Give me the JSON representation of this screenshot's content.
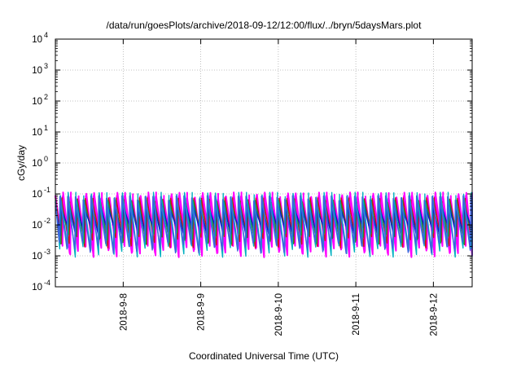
{
  "chart_data": {
    "type": "line",
    "title": "/data/run/goesPlots/archive/2018-09-12/12:00/flux/../bryn/5daysMars.plot",
    "xlabel": "Coordinated Universal Time (UTC)",
    "ylabel": "cGy/day",
    "yscale": "log",
    "ylim": [
      0.0001,
      10000
    ],
    "xlim": [
      "2018-09-07 03:00",
      "2018-09-12 12:00"
    ],
    "grid": true,
    "y_ticks": [
      {
        "label": "10",
        "exp": "-4",
        "value": 0.0001
      },
      {
        "label": "10",
        "exp": "-3",
        "value": 0.001
      },
      {
        "label": "10",
        "exp": "-2",
        "value": 0.01
      },
      {
        "label": "10",
        "exp": "-1",
        "value": 0.1
      },
      {
        "label": "10",
        "exp": "0",
        "value": 1
      },
      {
        "label": "10",
        "exp": "1",
        "value": 10
      },
      {
        "label": "10",
        "exp": "2",
        "value": 100
      },
      {
        "label": "10",
        "exp": "3",
        "value": 1000
      },
      {
        "label": "10",
        "exp": "4",
        "value": 10000
      }
    ],
    "x_ticks": [
      {
        "label": "2018-9-8",
        "value": "2018-09-08 00:00"
      },
      {
        "label": "2018-9-9",
        "value": "2018-09-09 00:00"
      },
      {
        "label": "2018-9-10",
        "value": "2018-09-10 00:00"
      },
      {
        "label": "2018-9-11",
        "value": "2018-09-11 00:00"
      },
      {
        "label": "2018-9-12",
        "value": "2018-09-12 00:00"
      }
    ],
    "series_pattern": {
      "shape": "sawtooth",
      "cycles_per_day": 10,
      "peaks": [
        0.09,
        0.07,
        0.06,
        0.05,
        0.045
      ],
      "troughs": [
        0.0015,
        0.002,
        0.003,
        0.004,
        0.006
      ]
    },
    "series": [
      {
        "color": "#ff00ff"
      },
      {
        "color": "#ff00ff"
      },
      {
        "color": "#d01010"
      },
      {
        "color": "#2a8a2a"
      },
      {
        "color": "#1010d0"
      },
      {
        "color": "#00b0c0"
      },
      {
        "color": "#4060e0"
      }
    ]
  }
}
